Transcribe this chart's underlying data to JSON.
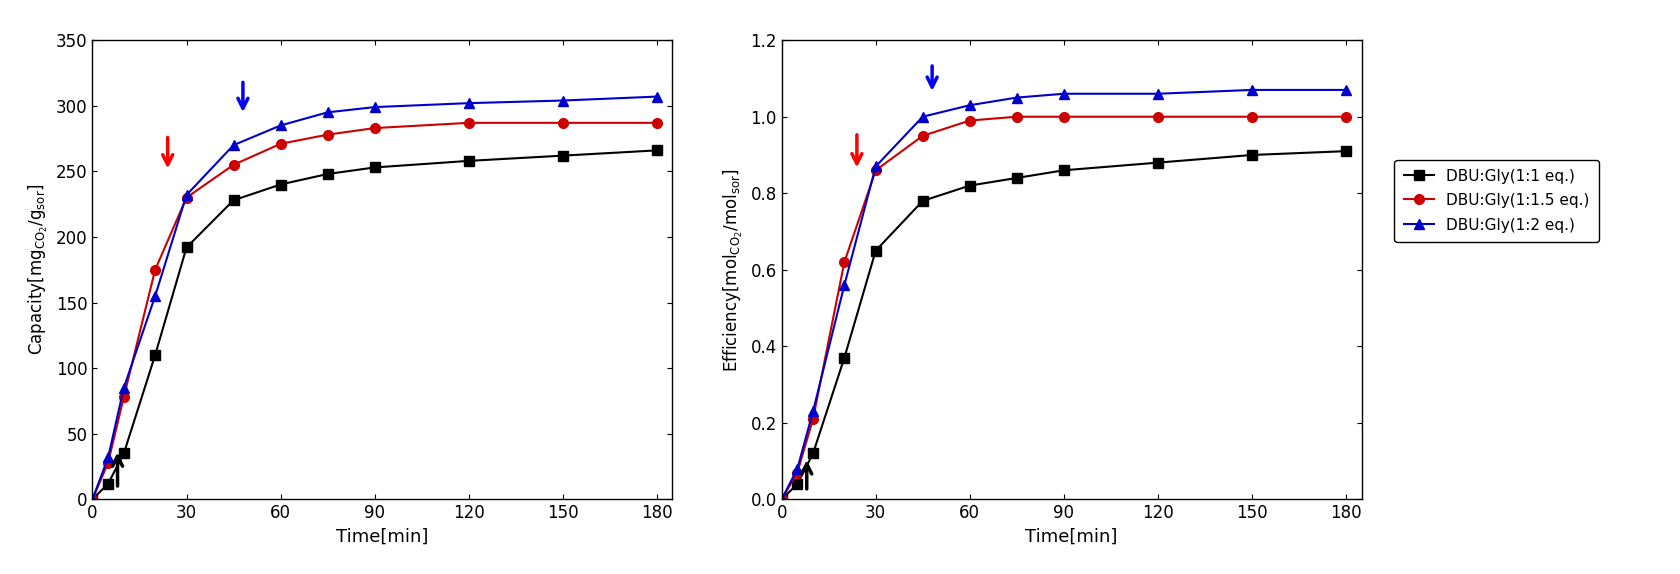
{
  "left_plot": {
    "xlabel": "Time[min]",
    "ylabel": "Capacity[$\\mathrm{mg_{CO_2}/g_{sor}}$]",
    "xlim": [
      0,
      185
    ],
    "ylim": [
      0,
      350
    ],
    "xticks": [
      0,
      30,
      60,
      90,
      120,
      150,
      180
    ],
    "yticks": [
      0,
      50,
      100,
      150,
      200,
      250,
      300,
      350
    ],
    "series": [
      {
        "label": "DBU:Gly(1:1 eq.)",
        "color": "#000000",
        "marker": "s",
        "x": [
          0,
          5,
          10,
          20,
          30,
          45,
          60,
          75,
          90,
          120,
          150,
          180
        ],
        "y": [
          0,
          12,
          35,
          110,
          192,
          228,
          240,
          248,
          253,
          258,
          262,
          266
        ]
      },
      {
        "label": "DBU:Gly(1:1.5 eq.)",
        "color": "#cc0000",
        "marker": "o",
        "x": [
          0,
          5,
          10,
          20,
          30,
          45,
          60,
          75,
          90,
          120,
          150,
          180
        ],
        "y": [
          0,
          28,
          78,
          175,
          230,
          255,
          271,
          278,
          283,
          287,
          287,
          287
        ]
      },
      {
        "label": "DBU:Gly(1:2 eq.)",
        "color": "#0000cc",
        "marker": "^",
        "x": [
          0,
          5,
          10,
          20,
          30,
          45,
          60,
          75,
          90,
          120,
          150,
          180
        ],
        "y": [
          0,
          32,
          85,
          155,
          232,
          270,
          285,
          295,
          299,
          302,
          304,
          307
        ]
      }
    ],
    "arrow_black": {
      "x_tail": 8,
      "y_tail": 8,
      "x_head": 8,
      "y_head": 38
    },
    "arrow_red": {
      "x_tail": 24,
      "y_tail": 278,
      "x_head": 24,
      "y_head": 250
    },
    "arrow_blue": {
      "x_tail": 48,
      "y_tail": 320,
      "x_head": 48,
      "y_head": 293
    }
  },
  "right_plot": {
    "xlabel": "Time[min]",
    "ylabel": "Efficiency[$\\mathrm{mol_{CO_2}/mol_{sor}}$]",
    "xlim": [
      0,
      185
    ],
    "ylim": [
      0.0,
      1.2
    ],
    "xticks": [
      0,
      30,
      60,
      90,
      120,
      150,
      180
    ],
    "yticks": [
      0.0,
      0.2,
      0.4,
      0.6,
      0.8,
      1.0,
      1.2
    ],
    "series": [
      {
        "label": "DBU:Gly(1:1 eq.)",
        "color": "#000000",
        "marker": "s",
        "x": [
          0,
          5,
          10,
          20,
          30,
          45,
          60,
          75,
          90,
          120,
          150,
          180
        ],
        "y": [
          0.0,
          0.04,
          0.12,
          0.37,
          0.65,
          0.78,
          0.82,
          0.84,
          0.86,
          0.88,
          0.9,
          0.91
        ]
      },
      {
        "label": "DBU:Gly(1:1.5 eq.)",
        "color": "#cc0000",
        "marker": "o",
        "x": [
          0,
          5,
          10,
          20,
          30,
          45,
          60,
          75,
          90,
          120,
          150,
          180
        ],
        "y": [
          0.0,
          0.07,
          0.21,
          0.62,
          0.86,
          0.95,
          0.99,
          1.0,
          1.0,
          1.0,
          1.0,
          1.0
        ]
      },
      {
        "label": "DBU:Gly(1:2 eq.)",
        "color": "#0000cc",
        "marker": "^",
        "x": [
          0,
          5,
          10,
          20,
          30,
          45,
          60,
          75,
          90,
          120,
          150,
          180
        ],
        "y": [
          0.0,
          0.08,
          0.23,
          0.56,
          0.87,
          1.0,
          1.03,
          1.05,
          1.06,
          1.06,
          1.07,
          1.07
        ]
      }
    ],
    "arrow_black": {
      "x_tail": 8,
      "y_tail": 0.02,
      "x_head": 8,
      "y_head": 0.11
    },
    "arrow_red": {
      "x_tail": 24,
      "y_tail": 0.96,
      "x_head": 24,
      "y_head": 0.86
    },
    "arrow_blue": {
      "x_tail": 48,
      "y_tail": 1.14,
      "x_head": 48,
      "y_head": 1.06
    }
  },
  "legend": {
    "labels": [
      "DBU:Gly(1:1 eq.)",
      "DBU:Gly(1:1.5 eq.)",
      "DBU:Gly(1:2 eq.)"
    ],
    "colors": [
      "#000000",
      "#cc0000",
      "#0000cc"
    ],
    "markers": [
      "s",
      "o",
      "^"
    ]
  },
  "background_color": "#ffffff",
  "figure_width": 16.81,
  "figure_height": 5.74
}
